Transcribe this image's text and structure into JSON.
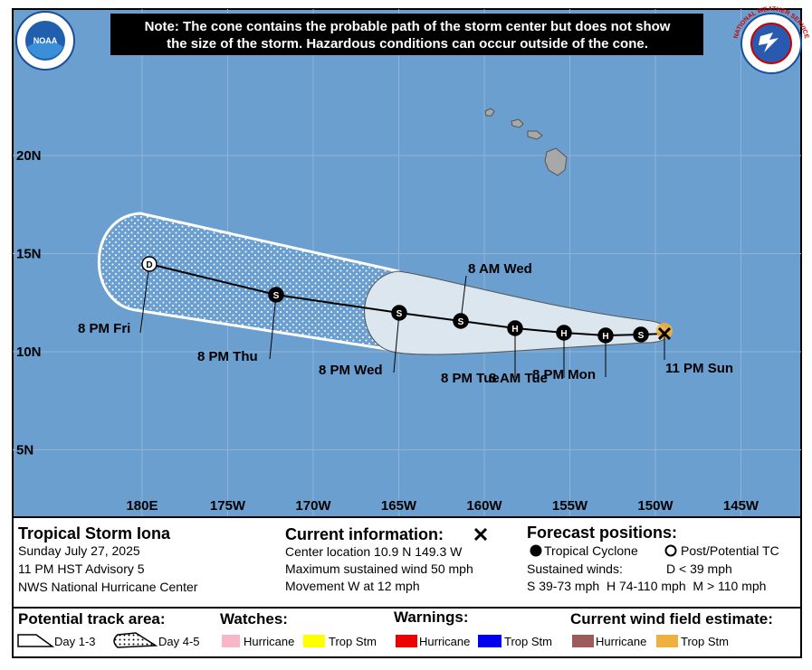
{
  "note": [
    "Note: The cone contains the probable path of the storm center but does not show",
    "the size of the storm. Hazardous conditions can occur outside of the cone."
  ],
  "logos": {
    "noaa": "NOAA",
    "nws": "NATIONAL WEATHER SERVICE"
  },
  "map": {
    "lat_labels": [
      "20N",
      "15N",
      "10N",
      "5N"
    ],
    "lon_labels": [
      "180E",
      "175W",
      "170W",
      "165W",
      "160W",
      "155W",
      "150W",
      "145W"
    ],
    "track": [
      {
        "label": "11 PM Sun"
      },
      {
        "symbol": "S"
      },
      {
        "symbol": "H",
        "label": "8 PM Mon"
      },
      {
        "symbol": "H",
        "label": "8 AM Tue"
      },
      {
        "symbol": "H",
        "label": "8 PM Tue"
      },
      {
        "symbol": "S",
        "label": "8 AM Wed"
      },
      {
        "symbol": "S",
        "label": "8 PM Wed"
      },
      {
        "symbol": "S",
        "label": "8 PM Thu"
      },
      {
        "symbol": "D",
        "label": "8 PM Fri"
      }
    ]
  },
  "storm": {
    "title": "Tropical Storm Iona",
    "lines": [
      "Sunday July 27, 2025",
      "11 PM HST Advisory 5",
      "NWS National Hurricane Center"
    ]
  },
  "current": {
    "title": "Current information:",
    "lines": [
      "Center location 10.9 N 149.3 W",
      "Maximum sustained wind 50 mph",
      "Movement W at 12 mph"
    ]
  },
  "forecast": {
    "title": "Forecast positions:",
    "tropical": "Tropical Cyclone",
    "post": "Post/Potential TC",
    "winds": "Sustained winds:",
    "d": "D < 39 mph",
    "scale": "S 39-73 mph  H 74-110 mph  M > 110 mph"
  },
  "legend": {
    "track_title": "Potential track area:",
    "day13": "Day 1-3",
    "day45": "Day 4-5",
    "watches": "Watches:",
    "warnings": "Warnings:",
    "wind": "Current wind field estimate:",
    "watch_hurricane": "Hurricane",
    "watch_ts": "Trop Stm",
    "warn_hurricane": "Hurricane",
    "warn_ts": "Trop Stm",
    "wind_hurricane": "Hurricane",
    "wind_ts": "Trop Stm"
  }
}
